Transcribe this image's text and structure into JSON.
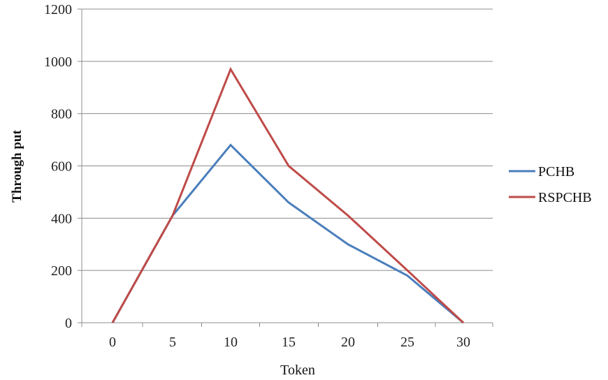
{
  "chart_data": {
    "type": "line",
    "title": "",
    "xlabel": "Token",
    "ylabel": "Through put",
    "x": [
      0,
      5,
      10,
      15,
      20,
      25,
      30
    ],
    "ylim": [
      0,
      1200
    ],
    "yticks": [
      0,
      200,
      400,
      600,
      800,
      1000,
      1200
    ],
    "grid": "horizontal",
    "legend": "right",
    "series": [
      {
        "name": "PCHB",
        "color": "#4a7ebb",
        "values": [
          0,
          410,
          680,
          460,
          300,
          180,
          0
        ]
      },
      {
        "name": "RSPCHB",
        "color": "#be4b48",
        "values": [
          0,
          410,
          970,
          600,
          410,
          200,
          0
        ]
      }
    ]
  }
}
